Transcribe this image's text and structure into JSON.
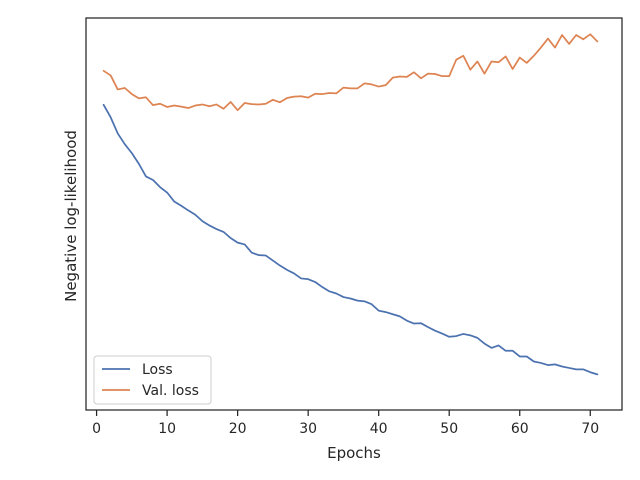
{
  "chart_data": {
    "type": "line",
    "title": "",
    "xlabel": "Epochs",
    "ylabel": "Negative log-likelihood",
    "xlim": [
      -1.5,
      74.5
    ],
    "ylim": [
      0,
      100
    ],
    "x_ticks": [
      0,
      10,
      20,
      30,
      40,
      50,
      60,
      70
    ],
    "x_tick_labels": [
      "0",
      "10",
      "20",
      "30",
      "40",
      "50",
      "60",
      "70"
    ],
    "y_ticks": [],
    "grid": false,
    "legend_position": "lower left",
    "x": [
      1,
      2,
      3,
      4,
      5,
      6,
      7,
      8,
      9,
      10,
      11,
      12,
      13,
      14,
      15,
      16,
      17,
      18,
      19,
      20,
      21,
      22,
      23,
      24,
      25,
      26,
      27,
      28,
      29,
      30,
      31,
      32,
      33,
      34,
      35,
      36,
      37,
      38,
      39,
      40,
      41,
      42,
      43,
      44,
      45,
      46,
      47,
      48,
      49,
      50,
      51,
      52,
      53,
      54,
      55,
      56,
      57,
      58,
      59,
      60,
      61,
      62,
      63,
      64,
      65,
      66,
      67,
      68,
      69,
      70,
      71
    ],
    "series": [
      {
        "name": "Loss",
        "color": "#4c72b0",
        "values": [
          80.5,
          77.0,
          72.5,
          69.5,
          67.0,
          64.0,
          60.5,
          59.5,
          57.5,
          56.0,
          53.5,
          52.3,
          51.0,
          49.8,
          48.0,
          46.8,
          45.8,
          45.0,
          43.3,
          42.0,
          41.5,
          39.2,
          38.5,
          38.4,
          37.0,
          35.6,
          34.4,
          33.4,
          32.0,
          31.8,
          31.0,
          29.6,
          28.4,
          27.8,
          26.8,
          26.4,
          25.8,
          25.6,
          24.8,
          23.0,
          22.6,
          22.0,
          21.4,
          20.2,
          19.4,
          19.5,
          18.4,
          17.4,
          16.6,
          15.7,
          15.9,
          16.5,
          16.1,
          15.4,
          13.8,
          12.6,
          13.3,
          11.8,
          11.8,
          10.2,
          10.2,
          8.8,
          8.4,
          7.8,
          8.0,
          7.4,
          7.0,
          6.6,
          6.6,
          5.8,
          5.2
        ]
      },
      {
        "name": "Val. loss",
        "color": "#dd8452",
        "values": [
          90.0,
          88.7,
          84.8,
          85.2,
          83.5,
          82.3,
          82.6,
          80.4,
          80.8,
          79.9,
          80.3,
          80.0,
          79.6,
          80.3,
          80.6,
          80.1,
          80.6,
          79.4,
          81.3,
          79.0,
          81.0,
          80.7,
          80.6,
          80.8,
          81.9,
          81.2,
          82.4,
          82.8,
          82.9,
          82.5,
          83.6,
          83.5,
          83.8,
          83.7,
          85.3,
          85.1,
          85.1,
          86.5,
          86.2,
          85.6,
          86.0,
          88.1,
          88.4,
          88.3,
          89.6,
          87.9,
          89.2,
          89.1,
          88.5,
          88.5,
          93.1,
          94.2,
          90.3,
          92.6,
          89.2,
          92.6,
          92.4,
          94.0,
          90.5,
          93.7,
          92.2,
          94.2,
          96.5,
          99.0,
          96.5,
          100.0,
          97.5,
          100.0,
          98.8,
          100.2,
          98.2
        ]
      }
    ],
    "legend": [
      "Loss",
      "Val. loss"
    ]
  }
}
